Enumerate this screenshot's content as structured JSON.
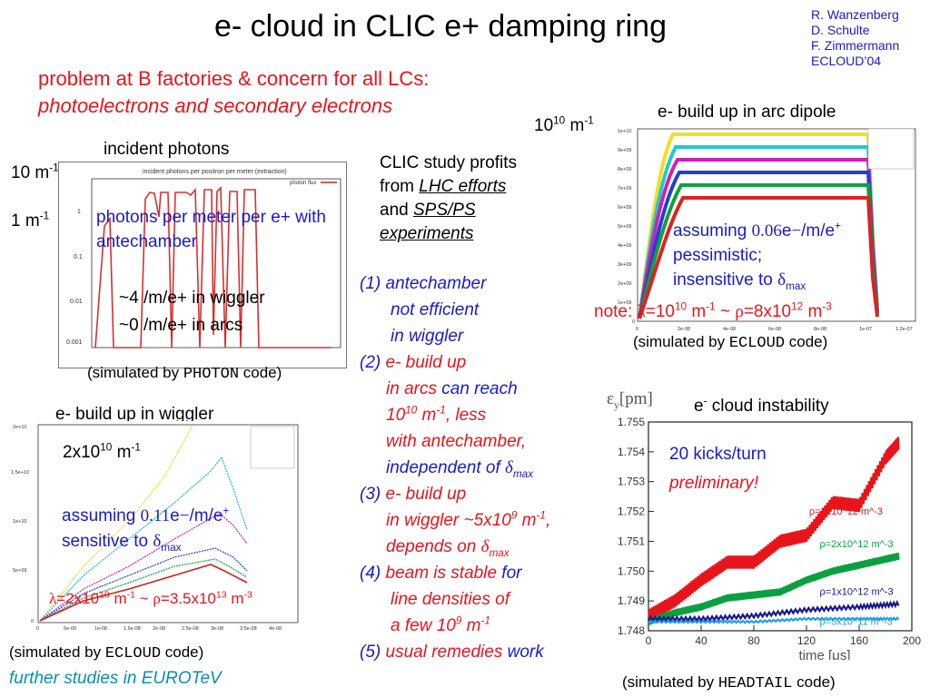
{
  "title": "e- cloud in CLIC e+ damping ring",
  "authors": [
    "R. Wanzenberg",
    "D. Schulte",
    "F. Zimmermann",
    "ECLOUD’04"
  ],
  "intro": {
    "line1": "problem at B factories & concern for all LCs:",
    "line2": "photoelectrons and secondary electrons"
  },
  "photons": {
    "heading": "incident photons",
    "label_top_num": "10",
    "label_top_unit": " m",
    "label_top_exp": "-1",
    "label_bottom": "1 m",
    "label_bottom_exp": "-1",
    "plot_title": "incident photons per positron per meter (extraction)",
    "plot_legend": "photon flux",
    "y_ticks": [
      "1",
      "0.1",
      "0.01",
      "0.001"
    ],
    "blue_note": "photons per meter per e+ with antechamber",
    "note1": "~4 /m/e+ in wiggler",
    "note2": "~0 /m/e+ in arcs",
    "sim_pre": "(simulated by ",
    "sim_code": "PHOTON",
    "sim_post": " code)"
  },
  "clic": {
    "l1": "CLIC study profits",
    "l2_pre": "from ",
    "l2_link": "LHC efforts",
    "l3_pre": "and ",
    "l3_link": "SPS/PS",
    "l4": "experiments"
  },
  "findings": {
    "f1a": "(1) ",
    "f1b": "antechamber",
    "f1c": "not efficient",
    "f1d": "in wiggler",
    "f2a": "(2) ",
    "f2b": "e- build up",
    "f2c": "in arcs",
    "f2d": " can reach",
    "f2e_num": "10",
    "f2e_exp": "10",
    "f2e_unit": " m",
    "f2e_unit_exp": "-1",
    "f2e_less": ", less",
    "f2f": "with antechamber,",
    "f2g": "independent of ",
    "f2g_sym": "δ",
    "f2g_sub": "max",
    "f3a": "(3) ",
    "f3b": "e- build up",
    "f3c_pre": "in wiggler ~5x10",
    "f3c_exp": "9",
    "f3c_unit": " m",
    "f3c_unit_exp": "-1",
    "f3c_end": ",",
    "f3d": "depends on ",
    "f3d_sym": "δ",
    "f3d_sub": "max",
    "f4a": "(4) ",
    "f4b": "beam is stable",
    "f4c": " for",
    "f4d": "line densities of",
    "f4e_pre": "a few 10",
    "f4e_exp": "9",
    "f4e_unit": " m",
    "f4e_unit_exp": "-1",
    "f5a": "(5) ",
    "f5b": "usual remedies",
    "f5c": " work"
  },
  "arc": {
    "heading": "e- build up in arc dipole",
    "ylabel_num": "10",
    "ylabel_exp": "10",
    "ylabel_unit": " m",
    "ylabel_unit_exp": "-1",
    "assume_pre": "assuming ",
    "assume_val": "0.06",
    "assume_post": "e",
    "assume_unit": "/m/e",
    "l2": "pessimistic;",
    "l3_pre": "insensitive to ",
    "l3_sym": "δ",
    "l3_sub": "max",
    "note_pre": "note: ",
    "note_lam": "λ",
    "note_mid": "=10",
    "note_exp1": "10",
    "note_m": " m",
    "note_m_exp": "-1",
    "note_tilde": " ~ ",
    "note_rho": "ρ",
    "note_eq": "=8x10",
    "note_exp2": "12",
    "note_m3": " m",
    "note_m3_exp": "-3",
    "sim_pre": "(simulated by ",
    "sim_code": "ECLOUD",
    "sim_post": " code)",
    "y_ticks": [
      "1e+10",
      "9e+09",
      "8e+09",
      "7e+09",
      "6e+09",
      "5e+09",
      "4e+09",
      "3e+09",
      "2e+09",
      "1e+09",
      "0"
    ],
    "x_ticks": [
      "0",
      "2e-08",
      "4e-08",
      "6e-08",
      "8e-08",
      "1e-07",
      "1.2e-07"
    ]
  },
  "wiggler": {
    "heading": "e- build up in wiggler",
    "label_pre": "2x10",
    "label_exp": "10",
    "label_unit": " m",
    "label_unit_exp": "-1",
    "assume_pre": "assuming ",
    "assume_val": "0.11",
    "assume_post": "e",
    "assume_unit": "/m/e",
    "l2_pre": "sensitive to ",
    "l2_sym": "δ",
    "l2_sub": "max",
    "lam": "λ",
    "lam_eq": "=2x10",
    "lam_exp": "10",
    "lam_m": " m",
    "lam_m_exp": "-1",
    "tilde": " ~ ",
    "rho": "ρ",
    "rho_eq": "=3.5x10",
    "rho_exp": "13",
    "rho_m": " m",
    "rho_m_exp": "-3",
    "sim_pre": "(simulated by ",
    "sim_code": "ECLOUD",
    "sim_post": " code)",
    "further": "further studies in EUROTeV",
    "y_ticks": [
      "2e+10",
      "1.5e+10",
      "1e+10",
      "5e+09",
      "0"
    ],
    "x_ticks": [
      "0",
      "5e-09",
      "1e-08",
      "1.5e-08",
      "2e-08",
      "2.5e-08",
      "3e-08",
      "3.5e-08",
      "4e-08"
    ]
  },
  "instability": {
    "heading_pre": "e",
    "heading_exp": "-",
    "heading_post": " cloud instability",
    "ylabel": "ε",
    "ylabel_sub": "y",
    "ylabel_unit": "[pm]",
    "kicks": "20 kicks/turn",
    "prelim": "preliminary!",
    "xlabel": "time [μs]",
    "sim_pre": "(simulated by ",
    "sim_code": "HEADTAIL",
    "sim_post": " code)"
  },
  "chart_data": {
    "type": "line",
    "xlabel": "time [μs]",
    "ylabel": "εy[pm]",
    "xlim": [
      0,
      200
    ],
    "ylim": [
      1.748,
      1.755
    ],
    "x_ticks": [
      0,
      40,
      80,
      120,
      160,
      200
    ],
    "y_ticks": [
      1.748,
      1.749,
      1.75,
      1.751,
      1.752,
      1.753,
      1.754,
      1.755
    ],
    "series": [
      {
        "name": "ρ=3x10^12 m^-3",
        "color": "#e8141c",
        "x": [
          0,
          20,
          40,
          60,
          80,
          100,
          120,
          140,
          160,
          180,
          190
        ],
        "y": [
          1.7485,
          1.749,
          1.7497,
          1.7503,
          1.7503,
          1.751,
          1.7512,
          1.7523,
          1.7522,
          1.7538,
          1.7543
        ]
      },
      {
        "name": "ρ=2x10^12 m^-3",
        "color": "#0aa040",
        "x": [
          0,
          20,
          40,
          60,
          80,
          100,
          120,
          140,
          160,
          180,
          190
        ],
        "y": [
          1.7483,
          1.7486,
          1.7488,
          1.7491,
          1.7492,
          1.7493,
          1.7497,
          1.75,
          1.7502,
          1.7504,
          1.7505
        ]
      },
      {
        "name": "ρ=1x10^12 m^-3",
        "color": "#1a1a90",
        "x": [
          0,
          40,
          80,
          120,
          160,
          190
        ],
        "y": [
          1.7484,
          1.7484,
          1.7485,
          1.7487,
          1.7488,
          1.7489
        ]
      },
      {
        "name": "ρ=5x10^11 m^-3",
        "color": "#20a0e0",
        "x": [
          0,
          40,
          80,
          120,
          160,
          190
        ],
        "y": [
          1.7483,
          1.7483,
          1.7483,
          1.7484,
          1.7484,
          1.7484
        ]
      }
    ],
    "annotations": [
      "ρ=3x10^12 m^-3",
      "ρ=2x10^12 m^-3",
      "ρ=1x10^12 m^-3",
      "ρ=5x10^11 m^-3"
    ]
  }
}
